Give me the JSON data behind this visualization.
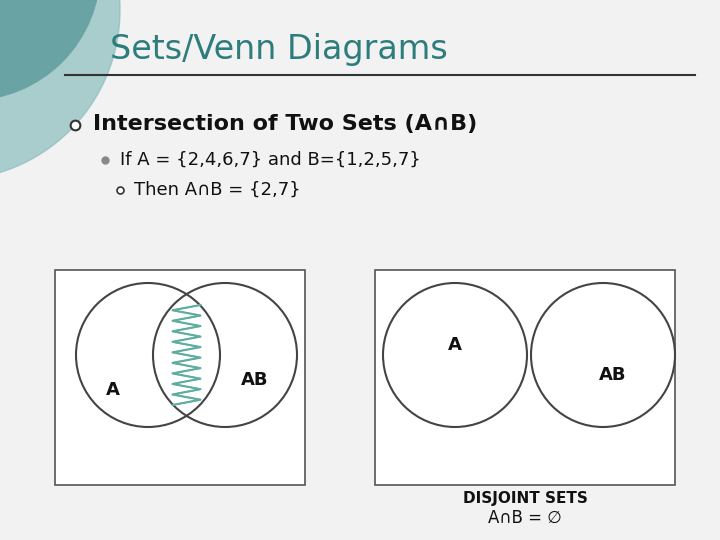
{
  "title": "Sets/Venn Diagrams",
  "title_color": "#2E7D7D",
  "bg_color": "#F0F0F0",
  "header_line_color": "#333333",
  "bullet1": "Intersection of Two Sets (A∩B)",
  "bullet2": "If A = {2,4,6,7} and B={1,2,5,7}",
  "bullet3": "Then A∩B = {2,7}",
  "disjoint_label1": "DISJOINT SETS",
  "disjoint_label2": "A∩B = ∅",
  "circle_color": "#444444",
  "zigzag_color": "#5FADA0",
  "label_A": "A",
  "label_AB": "AB",
  "teal_dark": "#1A6B6B",
  "teal_light": "#8BBCBC"
}
